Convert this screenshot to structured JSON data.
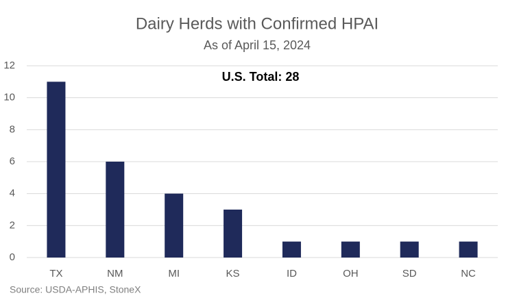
{
  "chart_data": {
    "type": "bar",
    "title": "Dairy Herds with Confirmed HPAI",
    "subtitle": "As of April 15, 2024",
    "annotation": "U.S. Total: 28",
    "source": "Source: USDA-APHIS, StoneX",
    "categories": [
      "TX",
      "NM",
      "MI",
      "KS",
      "ID",
      "OH",
      "SD",
      "NC"
    ],
    "values": [
      11,
      6,
      4,
      3,
      1,
      1,
      1,
      1
    ],
    "color": "#1f2a5a",
    "ylim": [
      0,
      12
    ],
    "yticks": [
      0,
      2,
      4,
      6,
      8,
      10,
      12
    ],
    "grid": true
  }
}
